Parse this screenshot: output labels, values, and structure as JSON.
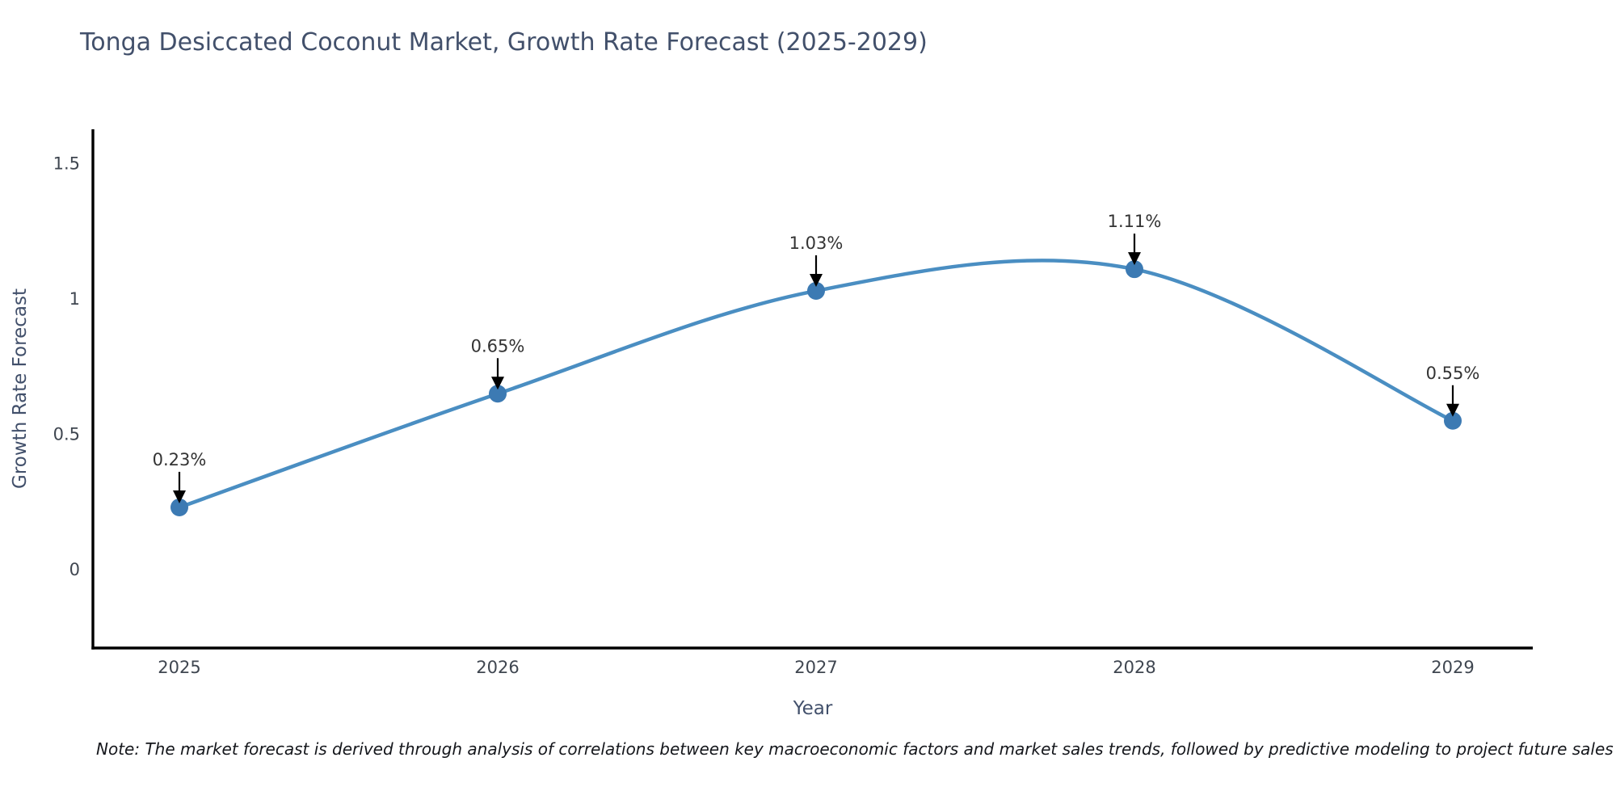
{
  "title": "Tonga Desiccated Coconut Market, Growth Rate Forecast (2025-2029)",
  "note": "Note: The market forecast is derived through analysis of correlations between key macroeconomic factors and market sales trends, followed by predictive modeling to project future sales",
  "chart_data": {
    "type": "line",
    "title": "Tonga Desiccated Coconut Market, Growth Rate Forecast (2025-2029)",
    "x": [
      "2025",
      "2026",
      "2027",
      "2028",
      "2029"
    ],
    "series": [
      {
        "name": "Growth Rate Forecast",
        "values": [
          0.23,
          0.65,
          1.03,
          1.11,
          0.55
        ],
        "point_labels": [
          "0.23%",
          "0.65%",
          "1.03%",
          "1.11%",
          "0.55%"
        ]
      }
    ],
    "xlabel": "Year",
    "ylabel": "Growth Rate Forecast",
    "yticks": [
      0,
      0.5,
      1,
      1.5
    ],
    "ylim": [
      -0.29,
      1.63
    ],
    "grid": false,
    "legend": "none",
    "smooth_line": true,
    "colors": {
      "line": "#4a8ec2",
      "marker": "#3c7ab3",
      "axis": "#000000",
      "tick_label": "#3f4650",
      "axis_title": "#42506b",
      "annotation_text": "#333333",
      "annotation_arrow": "#000000",
      "background": "#ffffff"
    }
  }
}
